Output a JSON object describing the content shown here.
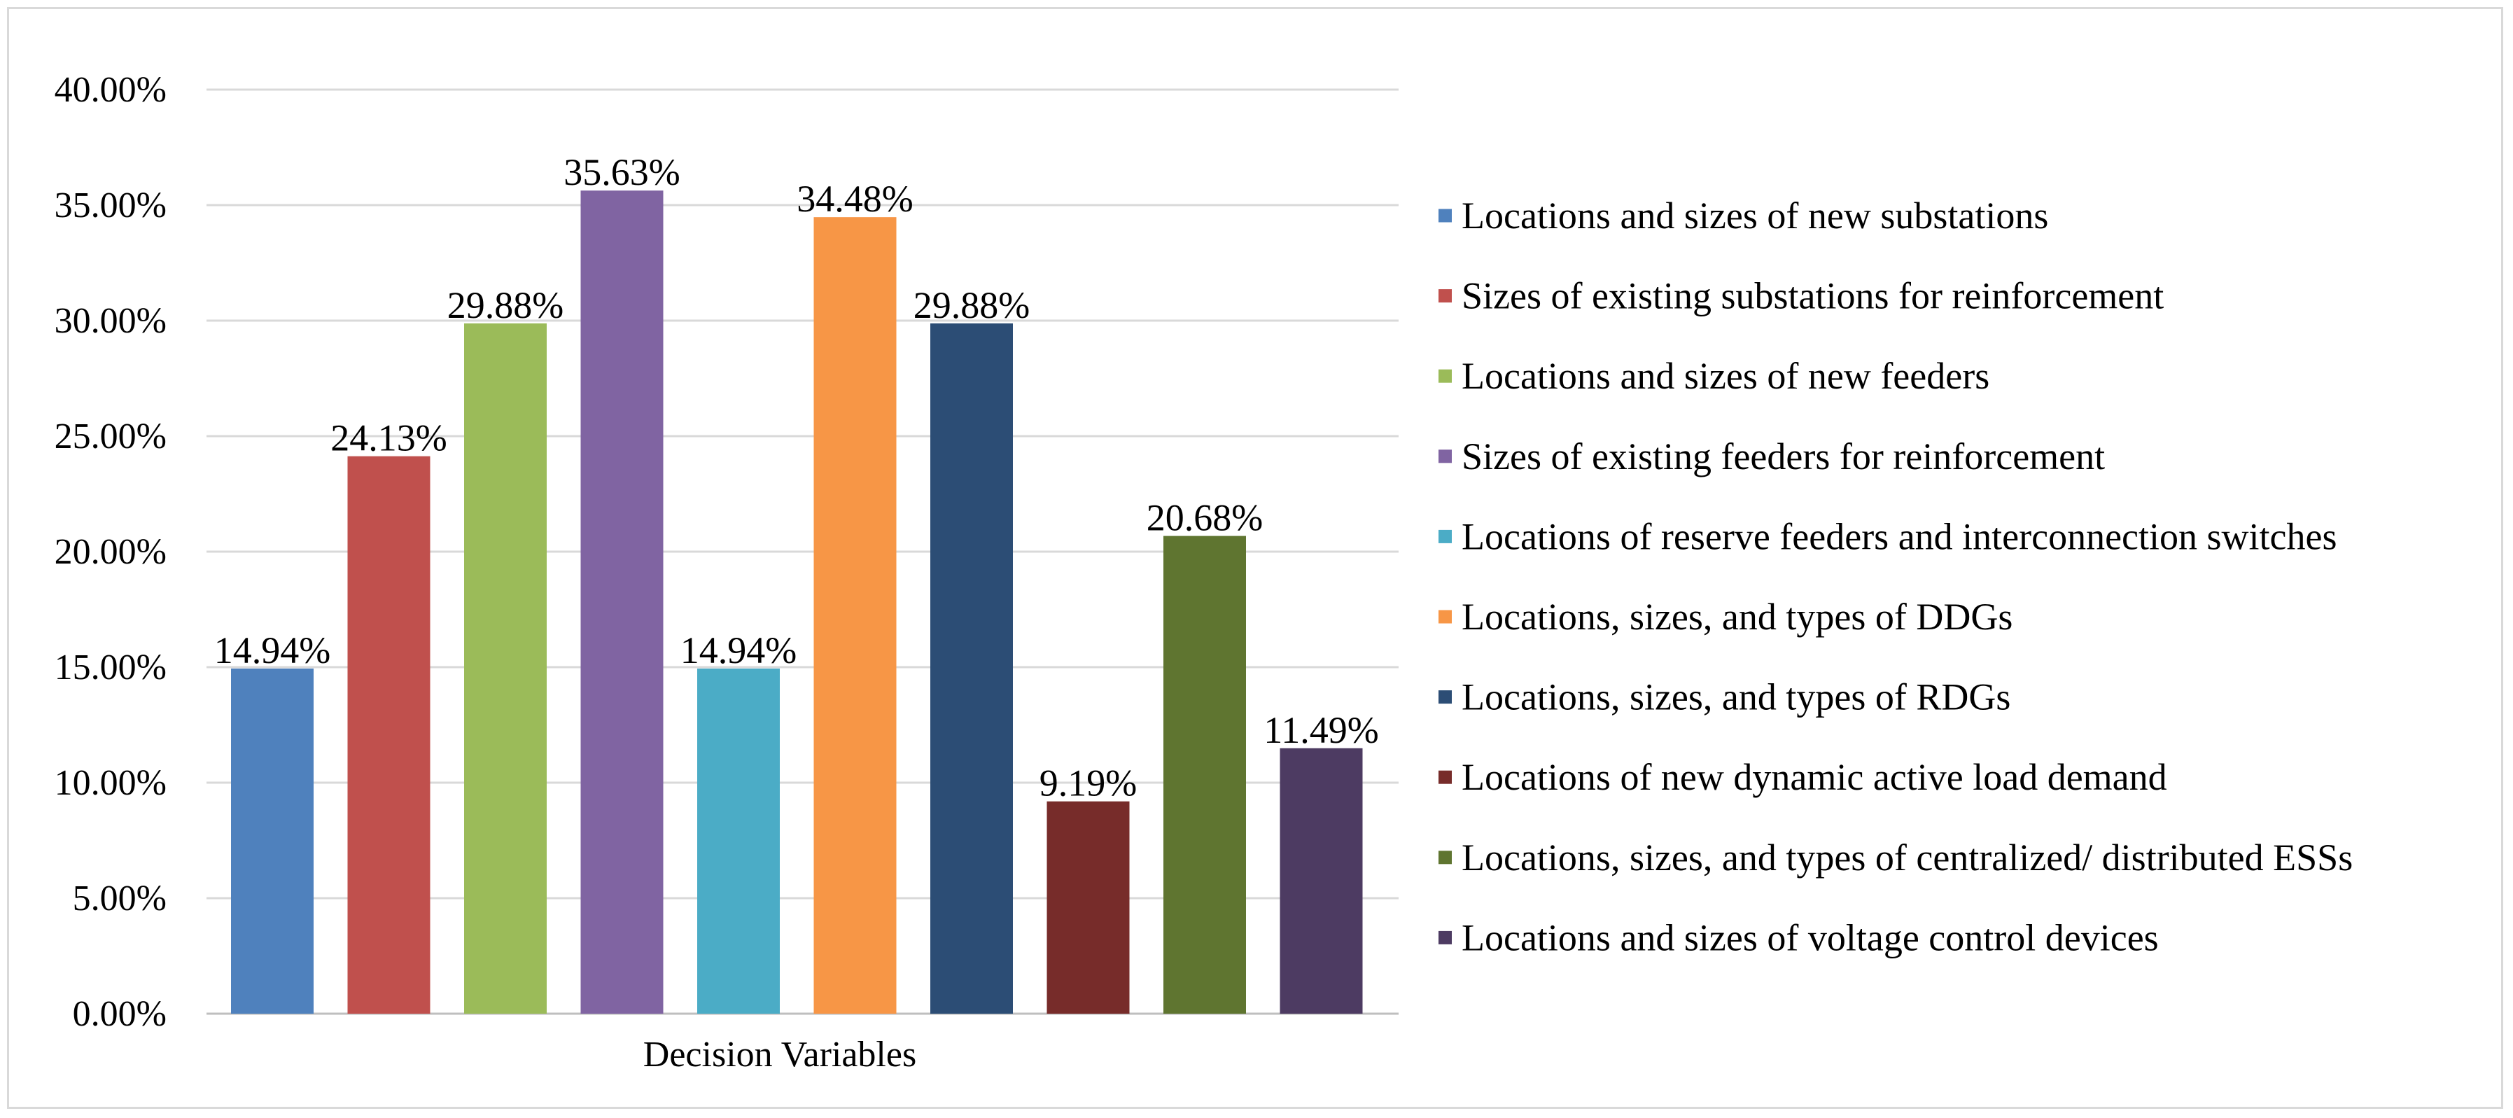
{
  "chart_data": {
    "type": "bar",
    "title": "",
    "xlabel": "Decision Variables",
    "ylabel": "",
    "ylim": [
      0,
      40
    ],
    "yticks": [
      0,
      5,
      10,
      15,
      20,
      25,
      30,
      35,
      40
    ],
    "ytick_labels": [
      "0.00%",
      "5.00%",
      "10.00%",
      "15.00%",
      "20.00%",
      "25.00%",
      "30.00%",
      "35.00%",
      "40.00%"
    ],
    "grid": true,
    "legend_position": "right",
    "categories": [
      "Decision Variables"
    ],
    "series": [
      {
        "name": "Locations and sizes of new substations",
        "values": [
          14.94
        ],
        "label": "14.94%",
        "color": "#4F81BD"
      },
      {
        "name": "Sizes of existing substations for reinforcement",
        "values": [
          24.13
        ],
        "label": "24.13%",
        "color": "#C0504D"
      },
      {
        "name": "Locations and sizes of new feeders",
        "values": [
          29.88
        ],
        "label": "29.88%",
        "color": "#9BBB59"
      },
      {
        "name": "Sizes of existing feeders for reinforcement",
        "values": [
          35.63
        ],
        "label": "35.63%",
        "color": "#8064A2"
      },
      {
        "name": "Locations of reserve feeders and interconnection switches",
        "values": [
          14.94
        ],
        "label": "14.94%",
        "color": "#4BACC6"
      },
      {
        "name": "Locations, sizes, and types of DDGs",
        "values": [
          34.48
        ],
        "label": "34.48%",
        "color": "#F79646"
      },
      {
        "name": "Locations, sizes, and types of RDGs",
        "values": [
          29.88
        ],
        "label": "29.88%",
        "color": "#2C4D75"
      },
      {
        "name": "Locations of new dynamic active load demand",
        "values": [
          9.19
        ],
        "label": "9.19%",
        "color": "#772C2A"
      },
      {
        "name": "Locations, sizes, and types of centralized/ distributed ESSs",
        "values": [
          20.68
        ],
        "label": "20.68%",
        "color": "#5F7530"
      },
      {
        "name": "Locations and sizes of voltage control devices",
        "values": [
          11.49
        ],
        "label": "11.49%",
        "color": "#4D3B62"
      }
    ]
  }
}
